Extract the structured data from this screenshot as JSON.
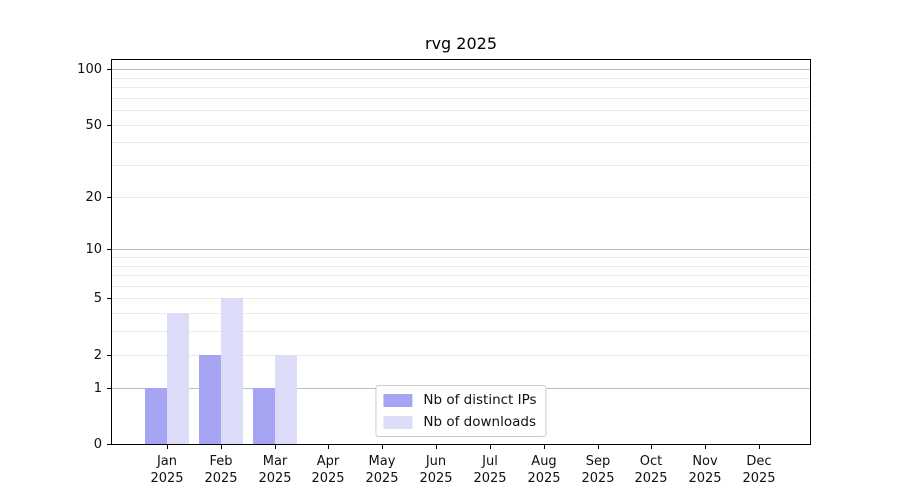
{
  "chart_data": {
    "type": "bar",
    "title": "rvg 2025",
    "categories": [
      {
        "month": "Jan",
        "year": "2025"
      },
      {
        "month": "Feb",
        "year": "2025"
      },
      {
        "month": "Mar",
        "year": "2025"
      },
      {
        "month": "Apr",
        "year": "2025"
      },
      {
        "month": "May",
        "year": "2025"
      },
      {
        "month": "Jun",
        "year": "2025"
      },
      {
        "month": "Jul",
        "year": "2025"
      },
      {
        "month": "Aug",
        "year": "2025"
      },
      {
        "month": "Sep",
        "year": "2025"
      },
      {
        "month": "Oct",
        "year": "2025"
      },
      {
        "month": "Nov",
        "year": "2025"
      },
      {
        "month": "Dec",
        "year": "2025"
      }
    ],
    "series": [
      {
        "key": "distinct-ips",
        "name": "Nb of distinct IPs",
        "color": "#a5a5f3",
        "values": [
          1,
          2,
          1,
          0,
          0,
          0,
          0,
          0,
          0,
          0,
          0,
          0
        ]
      },
      {
        "key": "downloads",
        "name": "Nb of downloads",
        "color": "#dcdcf8",
        "values": [
          4,
          5,
          2,
          0,
          0,
          0,
          0,
          0,
          0,
          0,
          0,
          0
        ]
      }
    ],
    "y_axis": {
      "scale": "log10(1+x)",
      "tick_values": [
        0,
        1,
        2,
        5,
        10,
        20,
        50,
        100
      ],
      "minor_gridline_values": [
        2,
        3,
        4,
        5,
        6,
        7,
        8,
        9,
        20,
        30,
        40,
        50,
        60,
        70,
        80,
        90
      ],
      "major_gridline_values": [
        1,
        10,
        100
      ],
      "top_value": 112
    },
    "legend_position": "bottom-center",
    "grid": "horizontal",
    "colors": {
      "gridline_minor": "#ececec",
      "gridline_major": "#bdbdbd",
      "spine": "#000000",
      "text": "#111111",
      "legend_border": "#cccccc",
      "background": "#ffffff"
    }
  }
}
